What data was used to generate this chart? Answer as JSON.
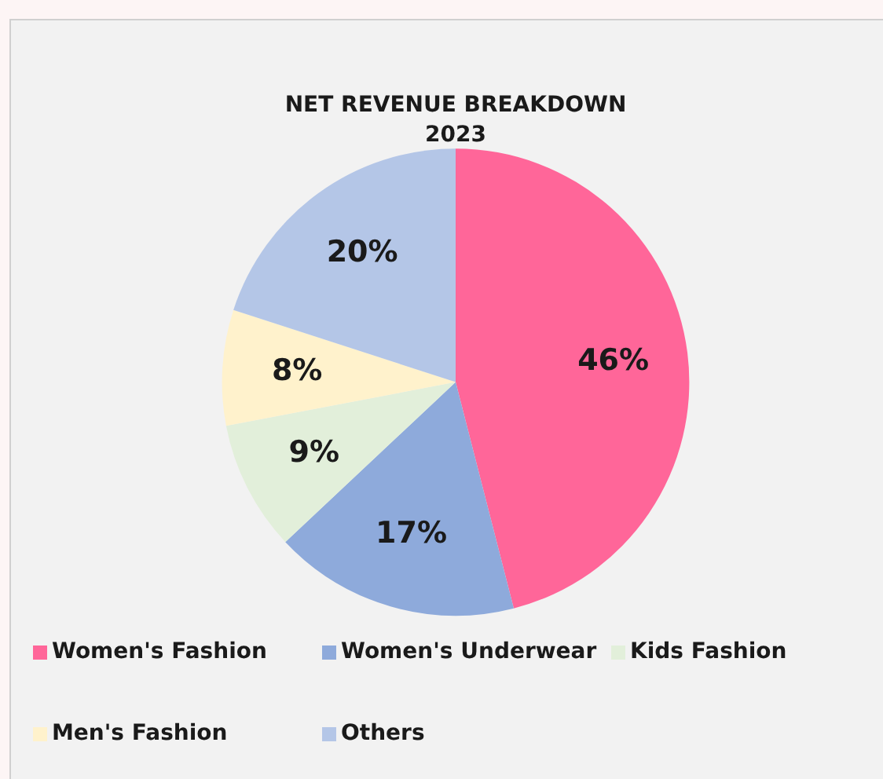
{
  "chart_data": {
    "type": "pie",
    "title": "NET REVENUE BREAKDOWN",
    "subtitle": "2023",
    "categories": [
      "Women's Fashion",
      "Women's Underwear",
      "Kids Fashion",
      "Men's Fashion",
      "Others"
    ],
    "values": [
      46,
      17,
      9,
      8,
      20
    ],
    "value_labels": [
      "46%",
      "17%",
      "9%",
      "8%",
      "20%"
    ],
    "colors": [
      "#ff6699",
      "#8eaadb",
      "#e2efda",
      "#fff2cc",
      "#b4c6e7"
    ],
    "legend": "bottom"
  }
}
